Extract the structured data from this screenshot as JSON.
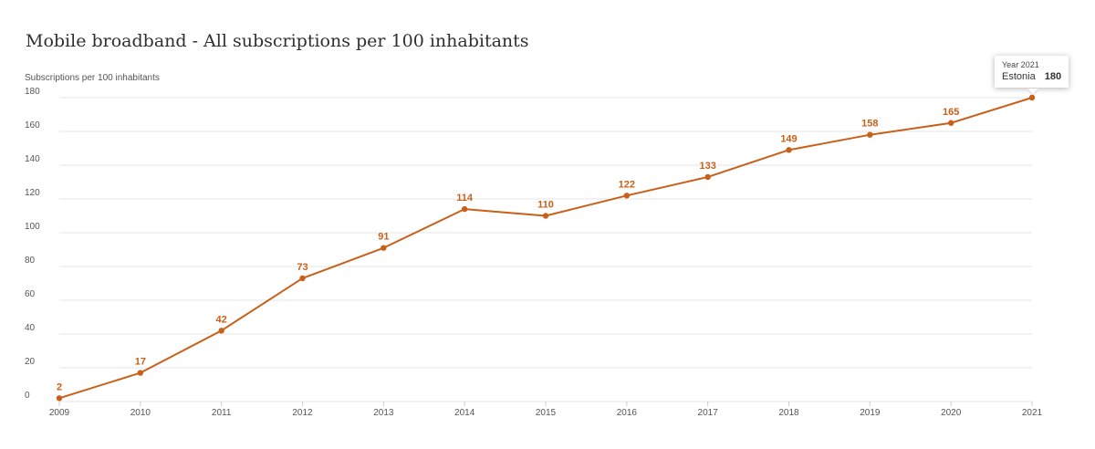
{
  "chart_data": {
    "type": "line",
    "title": "Mobile broadband - All subscriptions per 100 inhabitants",
    "ylabel": "Subscriptions per 100 inhabitants",
    "xlabel": "",
    "x": [
      "2009",
      "2010",
      "2011",
      "2012",
      "2013",
      "2014",
      "2015",
      "2016",
      "2017",
      "2018",
      "2019",
      "2020",
      "2021"
    ],
    "series": [
      {
        "name": "Estonia",
        "values": [
          2,
          17,
          42,
          73,
          91,
          114,
          110,
          122,
          133,
          149,
          158,
          165,
          180
        ]
      }
    ],
    "ylim": [
      0,
      180
    ],
    "yticks": [
      0,
      20,
      40,
      60,
      80,
      100,
      120,
      140,
      160,
      180
    ],
    "grid": true,
    "legend": "none",
    "data_labels": [
      "2",
      "17",
      "42",
      "73",
      "91",
      "114",
      "110",
      "122",
      "133",
      "149",
      "158",
      "165",
      ""
    ]
  },
  "colors": {
    "series": "#c8601a",
    "grid": "#e6e6e6",
    "axis_text": "#555555"
  },
  "tooltip": {
    "year_label": "Year 2021",
    "series_name": "Estonia",
    "value": "180"
  }
}
